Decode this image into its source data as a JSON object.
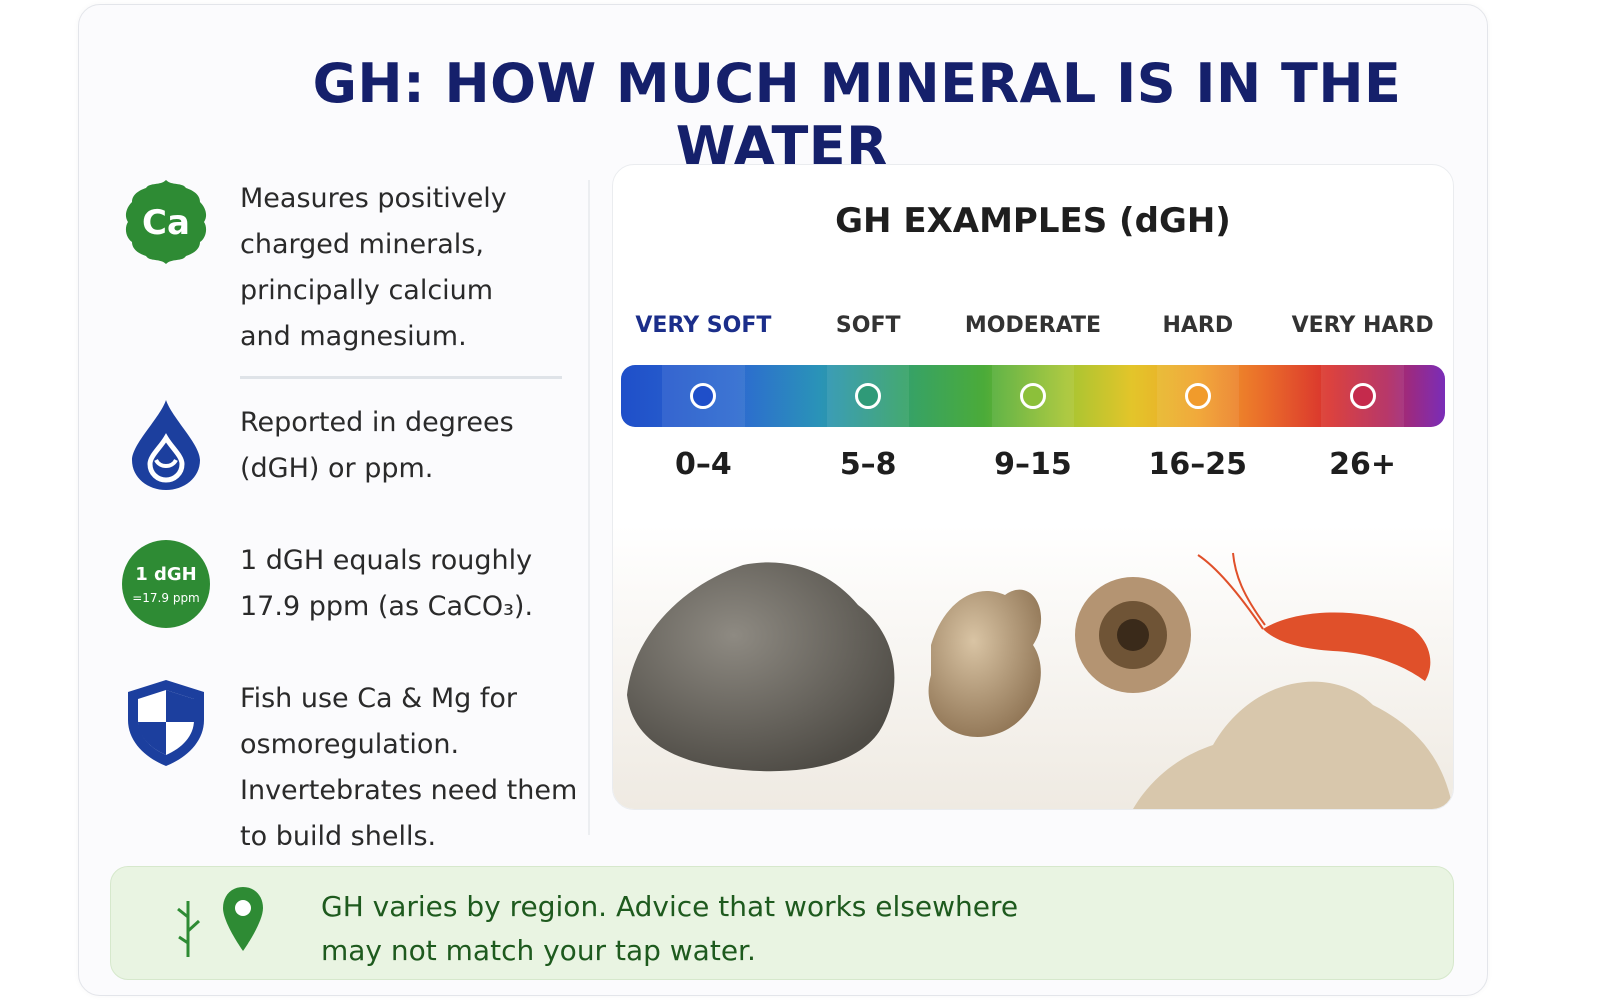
{
  "title": "GH: HOW MUCH MINERAL IS IN THE WATER",
  "info": [
    {
      "icon": "calcium-element-icon",
      "icon_text": "Ca",
      "lines": [
        "Measures positively",
        "charged minerals,",
        "principally calcium",
        "and magnesium."
      ]
    },
    {
      "icon": "water-drop-icon",
      "lines": [
        "Reported in degrees",
        "(dGH) or ppm."
      ]
    },
    {
      "icon": "dgh-conversion-badge-icon",
      "icon_line1": "1 dGH",
      "icon_line2": "=17.9 ppm",
      "lines": [
        "1 dGH equals roughly",
        "17.9 ppm (as CaCO₃)."
      ]
    },
    {
      "icon": "shield-icon",
      "lines": [
        "Fish use Ca & Mg for",
        "osmoregulation.",
        "Invertebrates need them",
        "to build shells."
      ]
    }
  ],
  "panel": {
    "title": "GH EXAMPLES (dGH)",
    "categories": [
      "VERY SOFT",
      "SOFT",
      "MODERATE",
      "HARD",
      "VERY HARD"
    ],
    "ranges": [
      "0–4",
      "5–8",
      "9–15",
      "16–25",
      "26+"
    ],
    "colors": [
      "#1f4fc9",
      "#2f9a78",
      "#8cc03a",
      "#f19b2b",
      "#c52a4c"
    ]
  },
  "footer": {
    "lines": [
      "GH varies by region. Advice that works elsewhere",
      "may not match your tap water."
    ]
  }
}
